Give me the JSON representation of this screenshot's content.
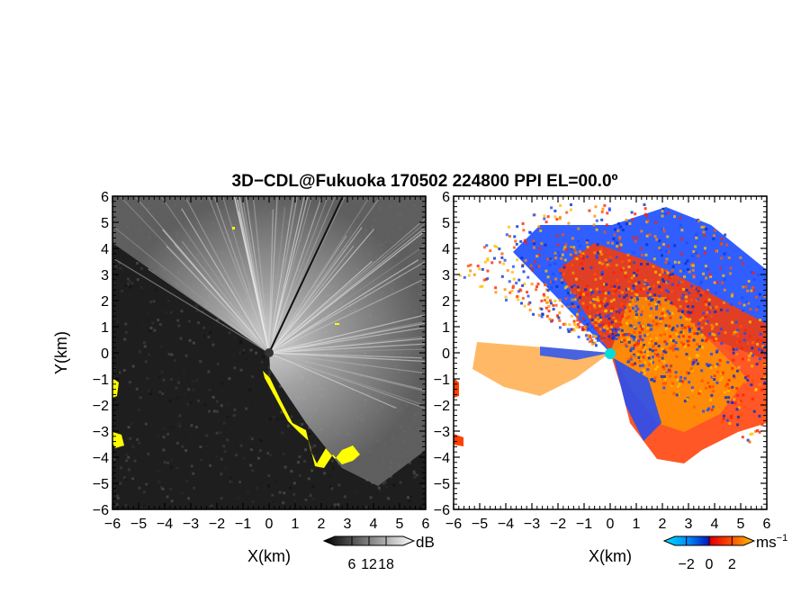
{
  "title": "3D−CDL@Fukuoka 170502 224800 PPI EL=00.0º",
  "chart_data": [
    {
      "type": "heatmap",
      "name": "backscatter-intensity",
      "title": "",
      "xlabel": "X(km)",
      "ylabel": "Y(km)",
      "xlim": [
        -6,
        6
      ],
      "ylim": [
        -6,
        6
      ],
      "x_ticks": [
        "−6",
        "−5",
        "−4",
        "−3",
        "−2",
        "−1",
        "0",
        "1",
        "2",
        "3",
        "4",
        "5",
        "6"
      ],
      "y_ticks": [
        "6",
        "5",
        "4",
        "3",
        "2",
        "1",
        "0",
        "−1",
        "−2",
        "−3",
        "−4",
        "−5",
        "−6"
      ],
      "colorbar": {
        "unit": "dB",
        "ticks": [
          "6",
          "12",
          "18"
        ],
        "range": [
          0,
          24
        ],
        "palette": "grayscale"
      },
      "overlay_color": "#ffff00",
      "background_color": "#1e1e1e"
    },
    {
      "type": "heatmap",
      "name": "radial-velocity",
      "title": "",
      "xlabel": "X(km)",
      "ylabel": "",
      "xlim": [
        -6,
        6
      ],
      "ylim": [
        -6,
        6
      ],
      "x_ticks": [
        "−6",
        "−5",
        "−4",
        "−3",
        "−2",
        "−1",
        "0",
        "1",
        "2",
        "3",
        "4",
        "5",
        "6"
      ],
      "y_ticks": [
        "6",
        "5",
        "4",
        "3",
        "2",
        "1",
        "0",
        "−1",
        "−2",
        "−3",
        "−4",
        "−5",
        "−6"
      ],
      "colorbar": {
        "unit": "ms",
        "unit_exp": "−1",
        "ticks": [
          "−2",
          "0",
          "2"
        ],
        "range": [
          -3,
          3
        ],
        "palette": [
          "#00c8ff",
          "#0040ff",
          "#ff0000",
          "#ffa000"
        ]
      },
      "radar_marker_color": "#00dddd"
    }
  ]
}
